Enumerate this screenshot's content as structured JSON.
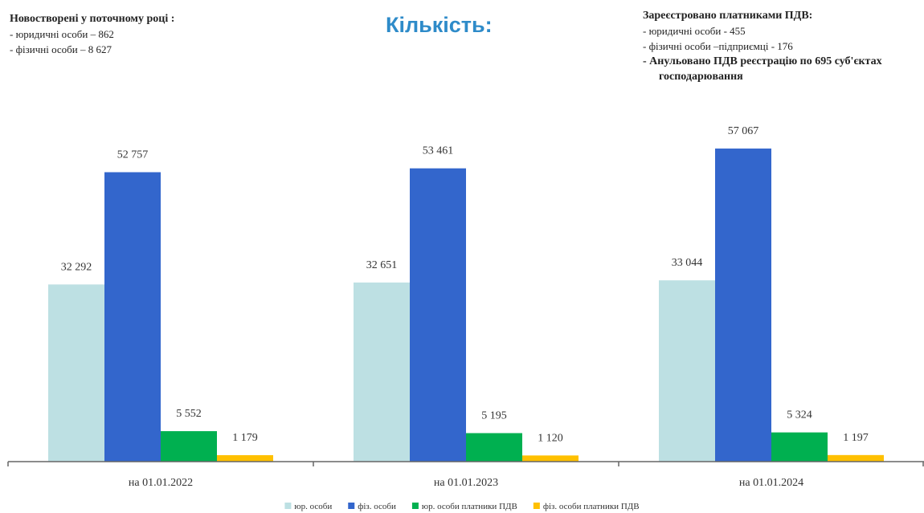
{
  "chart_data": {
    "type": "bar",
    "title": "Кількість:",
    "annotations": [
      {
        "title": "Новостворені у поточному році :",
        "items": [
          "- юридичні особи – 862",
          "- фізичні особи – 8 627"
        ]
      },
      {
        "title": "Зареєстровано платниками ПДВ:",
        "items": [
          "- юридичні особи - 455",
          "-   фізичні особи –підприємці  - 176",
          "-   Анульовано ПДВ реєстрацію по 695 суб'єктах господарювання"
        ]
      }
    ],
    "categories": [
      "на 01.01.2022",
      "на 01.01.2023",
      "на 01.01.2024"
    ],
    "series": [
      {
        "name": "юр. особи",
        "color": "#bde0e3",
        "values": [
          32292,
          32651,
          33044
        ],
        "value_labels": [
          "32 292",
          "32 651",
          "33 044"
        ]
      },
      {
        "name": "фіз. особи",
        "color": "#3366cc",
        "values": [
          52757,
          53461,
          57067
        ],
        "value_labels": [
          "52 757",
          "53 461",
          "57 067"
        ]
      },
      {
        "name": "юр. особи платники ПДВ",
        "color": "#00b050",
        "values": [
          5552,
          5195,
          5324
        ],
        "value_labels": [
          "5 552",
          "5 195",
          "5 324"
        ]
      },
      {
        "name": "фіз. особи платники ПДВ",
        "color": "#ffc000",
        "values": [
          1179,
          1120,
          1197
        ],
        "value_labels": [
          "1 179",
          "1 120",
          "1 197"
        ]
      }
    ],
    "ylim": [
      0,
      60000
    ],
    "legend": "bottom"
  }
}
